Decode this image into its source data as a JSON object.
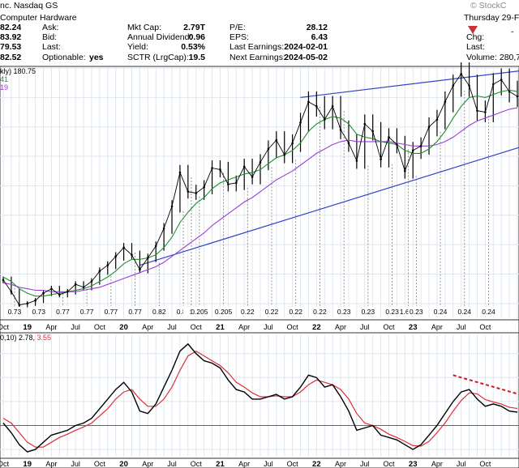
{
  "header": {
    "company_line": "nc. Nasdaq GS",
    "sector": "Computer Hardware",
    "brand": "© StockC",
    "date": "Thursday 29-Fe",
    "rows": [
      {
        "v0": "82.24",
        "label1": "Ask:",
        "label2": "Mkt Cap:",
        "val2": "2.79T",
        "label3": "P/E:",
        "val3": "28.12",
        "right": ""
      },
      {
        "v0": "83.92",
        "label1": "Bid:",
        "label2": "Annual Dividend:",
        "val2": "0.96",
        "label3": "EPS:",
        "val3": "6.43",
        "right": "Chg:"
      },
      {
        "v0": "79.53",
        "label1": "Last:",
        "label2": "Yield:",
        "val2": "0.53%",
        "label3": "Last Earnings:",
        "val3": "2024-02-01",
        "right": "Last:"
      },
      {
        "v0": "82.52",
        "label1": "Optionable:",
        "val1": "yes",
        "label2": "SCTR (LrgCap):",
        "val2": "19.5",
        "label3": "Next Earnings:",
        "val3": "2024-05-02",
        "right": "Volume: 280,7"
      }
    ]
  },
  "price_panel": {
    "label": "kly) 180.75",
    "ma_labels": [
      "41",
      "19"
    ]
  },
  "macd_panel": {
    "label_prefix": "0,10) 2.78,",
    "label_signal": "3.55"
  },
  "chart_data": {
    "type": "line",
    "x": [
      "2018-10",
      "2018-11",
      "2018-12",
      "2019-01",
      "2019-02",
      "2019-03",
      "2019-04",
      "2019-05",
      "2019-06",
      "2019-07",
      "2019-08",
      "2019-09",
      "2019-10",
      "2019-11",
      "2019-12",
      "2020-01",
      "2020-02",
      "2020-03",
      "2020-04",
      "2020-05",
      "2020-06",
      "2020-07",
      "2020-08",
      "2020-09",
      "2020-10",
      "2020-11",
      "2020-12",
      "2021-01",
      "2021-02",
      "2021-03",
      "2021-04",
      "2021-05",
      "2021-06",
      "2021-07",
      "2021-08",
      "2021-09",
      "2021-10",
      "2021-11",
      "2021-12",
      "2022-01",
      "2022-02",
      "2022-03",
      "2022-04",
      "2022-05",
      "2022-06",
      "2022-07",
      "2022-08",
      "2022-09",
      "2022-10",
      "2022-11",
      "2022-12",
      "2023-01",
      "2023-02",
      "2023-03",
      "2023-04",
      "2023-05",
      "2023-06",
      "2023-07",
      "2023-08",
      "2023-09",
      "2023-10",
      "2023-11",
      "2023-12",
      "2024-01",
      "2024-02"
    ],
    "series": [
      {
        "role": "price",
        "values": [
          56,
          48,
          39,
          40,
          42,
          47,
          50,
          46,
          48,
          53,
          51,
          55,
          62,
          66,
          72,
          78,
          73,
          63,
          71,
          79,
          91,
          106,
          129,
          116,
          115,
          119,
          132,
          131,
          121,
          122,
          133,
          126,
          136,
          145,
          151,
          141,
          149,
          163,
          177,
          174,
          165,
          174,
          158,
          149,
          137,
          162,
          157,
          138,
          153,
          148,
          130,
          144,
          147,
          160,
          165,
          177,
          188,
          196,
          188,
          171,
          170,
          189,
          192,
          184,
          180.75
        ]
      },
      {
        "role": "ma-short",
        "values": [
          58,
          55,
          50,
          47,
          45,
          45,
          46,
          47,
          48,
          49,
          50,
          52,
          55,
          58,
          62,
          67,
          70,
          70,
          71,
          73,
          78,
          85,
          95,
          102,
          108,
          112,
          118,
          122,
          124,
          126,
          128,
          129,
          131,
          135,
          139,
          141,
          144,
          149,
          157,
          162,
          165,
          167,
          166,
          162,
          155,
          153,
          152,
          150,
          149,
          148,
          144,
          142,
          142,
          145,
          150,
          157,
          166,
          174,
          180,
          181,
          180,
          182,
          184,
          185,
          184
        ]
      },
      {
        "role": "ma-long",
        "values": [
          54,
          53,
          51,
          50,
          49,
          49,
          48,
          48,
          48,
          48,
          49,
          50,
          51,
          53,
          55,
          57,
          59,
          61,
          63,
          65,
          68,
          72,
          76,
          80,
          84,
          88,
          93,
          97,
          101,
          105,
          109,
          112,
          116,
          120,
          124,
          127,
          130,
          134,
          138,
          142,
          145,
          148,
          150,
          151,
          150,
          150,
          150,
          150,
          150,
          149,
          148,
          147,
          147,
          147,
          148,
          150,
          153,
          157,
          161,
          164,
          166,
          168,
          170,
          172,
          173
        ]
      }
    ],
    "macd": {
      "series": [
        {
          "role": "macd-line",
          "values": [
            0.5,
            -1.5,
            -4.0,
            -5.5,
            -5.0,
            -3.5,
            -2.0,
            -1.5,
            -1.0,
            0.0,
            0.5,
            1.5,
            3.5,
            5.5,
            7.5,
            9.0,
            7.0,
            3.0,
            2.5,
            4.5,
            8.0,
            11.5,
            15.5,
            17.0,
            15.0,
            13.5,
            13.0,
            12.0,
            9.5,
            7.5,
            7.0,
            5.5,
            5.5,
            6.0,
            6.5,
            5.5,
            6.0,
            8.0,
            10.5,
            10.0,
            8.0,
            8.5,
            6.0,
            3.0,
            -1.0,
            -0.5,
            0.0,
            -2.0,
            -2.5,
            -3.0,
            -4.0,
            -5.0,
            -4.0,
            -2.0,
            0.0,
            2.5,
            5.0,
            7.0,
            7.5,
            5.5,
            4.0,
            4.5,
            4.0,
            3.0,
            2.78
          ]
        },
        {
          "role": "signal-line",
          "values": [
            1.5,
            0.5,
            -1.5,
            -3.5,
            -4.5,
            -4.5,
            -3.5,
            -2.5,
            -1.8,
            -1.0,
            -0.3,
            0.5,
            2.0,
            3.5,
            5.5,
            7.0,
            7.5,
            5.5,
            4.0,
            4.0,
            5.5,
            8.0,
            11.5,
            14.5,
            15.5,
            14.5,
            13.5,
            12.5,
            11.0,
            9.0,
            8.0,
            6.8,
            6.0,
            6.0,
            6.2,
            6.0,
            6.0,
            7.0,
            8.5,
            9.5,
            9.0,
            8.5,
            7.5,
            5.5,
            2.5,
            0.5,
            0.0,
            -0.8,
            -1.8,
            -2.5,
            -3.3,
            -4.2,
            -4.3,
            -3.3,
            -1.5,
            0.5,
            3.0,
            5.2,
            6.8,
            6.6,
            5.4,
            4.9,
            4.5,
            3.8,
            3.55
          ]
        }
      ],
      "zero_line": 0
    },
    "dividend_labels": [
      "0.73",
      "0.73",
      "0.77",
      "0.77",
      "0.77",
      "0.77",
      "0.82",
      "0.82",
      "1",
      "0.205",
      "0.205",
      "0.22",
      "0.22",
      "0.22",
      "0.22",
      "0.23",
      "0.23",
      "0.23",
      "1.667",
      "0.23",
      "0.24",
      "0.24",
      "0.24"
    ],
    "x_ticks": [
      "Oct",
      "19",
      "Apr",
      "Jul",
      "Oct",
      "20",
      "Apr",
      "Jul",
      "Oct",
      "21",
      "Apr",
      "Jul",
      "Oct",
      "22",
      "Apr",
      "Jul",
      "Oct",
      "23",
      "Apr",
      "Jul",
      "Oct"
    ],
    "ylim_price": [
      30,
      200
    ],
    "ylim_macd": [
      -6.5,
      19
    ],
    "grid": true,
    "colors": {
      "price": "#000000",
      "ma_short": "#1f8f2f",
      "ma_long": "#9a3fd6",
      "trend": "#2e46c8",
      "macd": "#000000",
      "signal": "#d9303a",
      "dashed": "#e0101a",
      "grid": "#dfe6ee",
      "bg": "#ffffff",
      "panel_bg": "#ffffff",
      "divider": "#333333"
    }
  }
}
